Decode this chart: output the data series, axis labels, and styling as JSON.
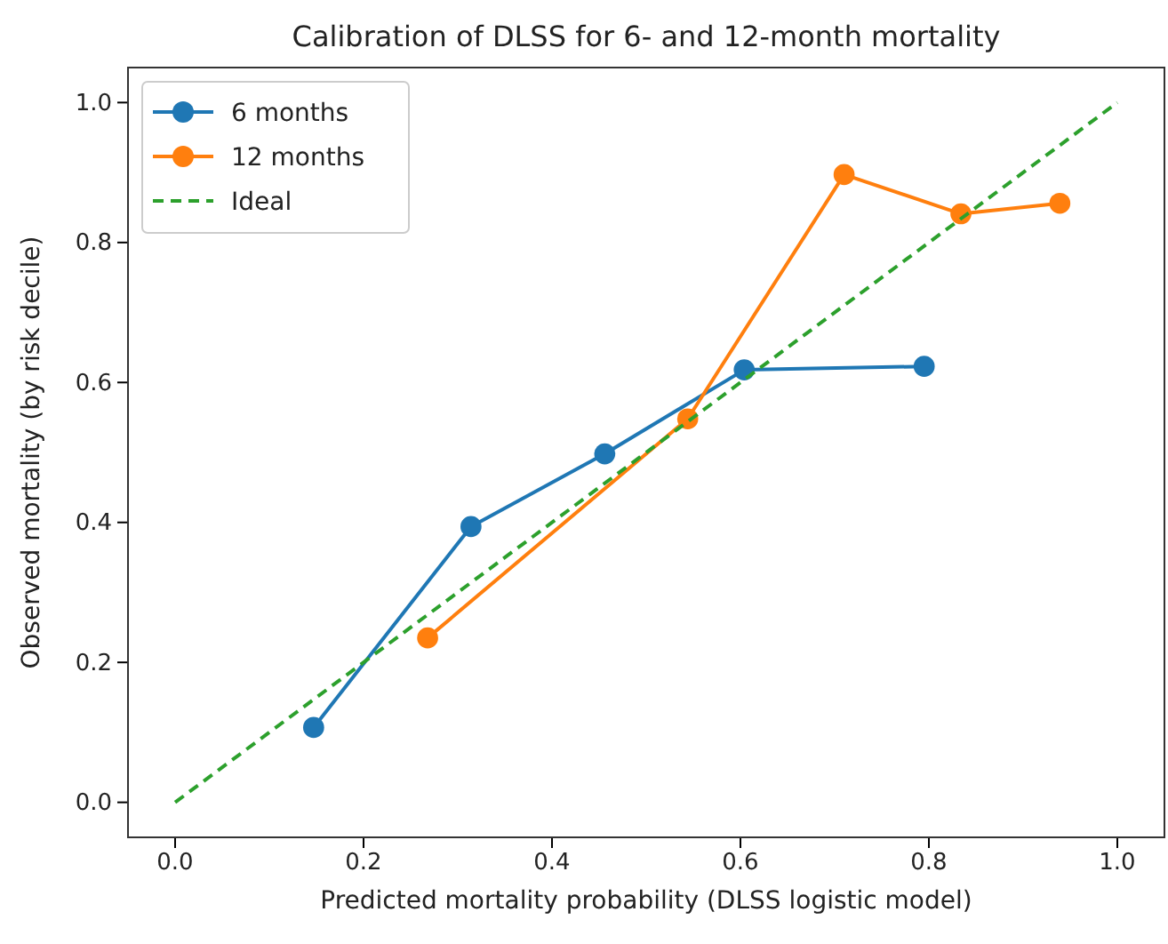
{
  "chart_data": {
    "type": "line",
    "title": "Calibration of DLSS for 6- and 12-month mortality",
    "xlabel": "Predicted mortality probability (DLSS logistic model)",
    "ylabel": "Observed mortality (by risk decile)",
    "xlim": [
      -0.05,
      1.05
    ],
    "ylim": [
      -0.05,
      1.05
    ],
    "xticks": [
      {
        "value": 0,
        "label": "0.0"
      },
      0.2,
      0.4,
      0.6,
      0.8,
      {
        "value": 1,
        "label": "1.0"
      }
    ],
    "yticks": [
      {
        "value": 0,
        "label": "0.0"
      },
      0.2,
      0.4,
      0.6,
      0.8,
      {
        "value": 1,
        "label": "1.0"
      }
    ],
    "grid": false,
    "legend": "top left",
    "series": [
      {
        "name": "6 months",
        "color": "#1f77b4",
        "marker": "circle",
        "line_style": "solid",
        "x": [
          0.147,
          0.314,
          0.456,
          0.604,
          0.795
        ],
        "values": [
          0.107,
          0.394,
          0.498,
          0.618,
          0.623
        ]
      },
      {
        "name": "12 months",
        "color": "#ff7f0e",
        "marker": "circle",
        "line_style": "solid",
        "x": [
          0.268,
          0.544,
          0.71,
          0.834,
          0.939
        ],
        "values": [
          0.235,
          0.548,
          0.897,
          0.841,
          0.856
        ]
      },
      {
        "name": "Ideal",
        "color": "#2ca02c",
        "marker": "none",
        "line_style": "dashed",
        "x": [
          0,
          1
        ],
        "values": [
          0,
          1
        ]
      }
    ]
  }
}
